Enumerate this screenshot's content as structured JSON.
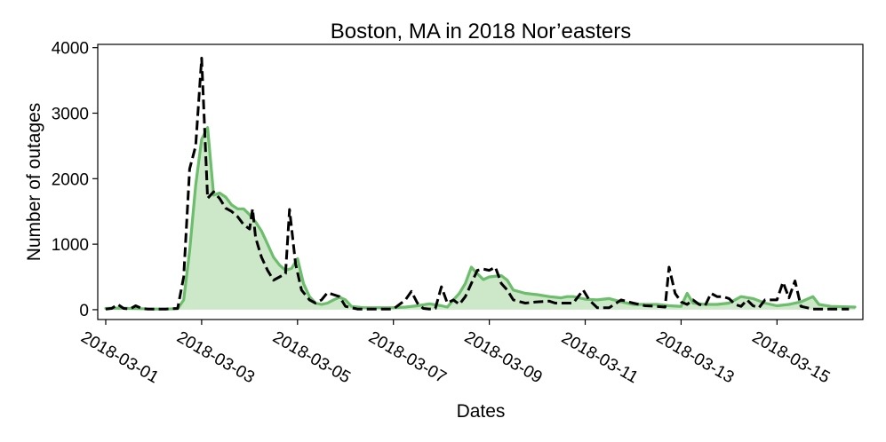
{
  "chart_data": {
    "type": "line",
    "title": "Boston, MA in 2018 Nor’easters",
    "xlabel": "Dates",
    "ylabel": "Number of outages",
    "x_tick_labels": [
      "2018-03-01",
      "2018-03-03",
      "2018-03-05",
      "2018-03-07",
      "2018-03-09",
      "2018-03-11",
      "2018-03-13",
      "2018-03-15"
    ],
    "y_ticks": [
      0,
      1000,
      2000,
      3000,
      4000
    ],
    "ylim": [
      -150,
      4050
    ],
    "xlim": [
      "2018-02-28T20:00",
      "2018-03-16T19:00"
    ],
    "grid": false,
    "series": [
      {
        "style": "filled-area-line",
        "color": "#6cbd6c",
        "fill_color": "#cde8c8",
        "points": [
          [
            "2018-03-01T00:00",
            20
          ],
          [
            "2018-03-01T06:00",
            25
          ],
          [
            "2018-03-01T12:00",
            20
          ],
          [
            "2018-03-01T18:00",
            15
          ],
          [
            "2018-03-02T00:00",
            10
          ],
          [
            "2018-03-02T06:00",
            10
          ],
          [
            "2018-03-02T12:00",
            15
          ],
          [
            "2018-03-02T15:00",
            150
          ],
          [
            "2018-03-02T18:00",
            900
          ],
          [
            "2018-03-02T21:00",
            1900
          ],
          [
            "2018-03-03T00:00",
            2600
          ],
          [
            "2018-03-03T03:00",
            2780
          ],
          [
            "2018-03-03T06:00",
            1750
          ],
          [
            "2018-03-03T09:00",
            1780
          ],
          [
            "2018-03-03T12:00",
            1720
          ],
          [
            "2018-03-03T15:00",
            1600
          ],
          [
            "2018-03-03T18:00",
            1540
          ],
          [
            "2018-03-03T21:00",
            1540
          ],
          [
            "2018-03-04T00:00",
            1450
          ],
          [
            "2018-03-04T03:00",
            1340
          ],
          [
            "2018-03-04T06:00",
            1200
          ],
          [
            "2018-03-04T09:00",
            1000
          ],
          [
            "2018-03-04T12:00",
            800
          ],
          [
            "2018-03-04T15:00",
            680
          ],
          [
            "2018-03-04T18:00",
            600
          ],
          [
            "2018-03-04T21:00",
            630
          ],
          [
            "2018-03-05T00:00",
            780
          ],
          [
            "2018-03-05T03:00",
            400
          ],
          [
            "2018-03-05T06:00",
            200
          ],
          [
            "2018-03-05T09:00",
            100
          ],
          [
            "2018-03-05T12:00",
            80
          ],
          [
            "2018-03-05T15:00",
            100
          ],
          [
            "2018-03-05T18:00",
            150
          ],
          [
            "2018-03-05T21:00",
            190
          ],
          [
            "2018-03-06T00:00",
            150
          ],
          [
            "2018-03-06T03:00",
            50
          ],
          [
            "2018-03-06T09:00",
            30
          ],
          [
            "2018-03-06T18:00",
            30
          ],
          [
            "2018-03-07T00:00",
            30
          ],
          [
            "2018-03-07T06:00",
            40
          ],
          [
            "2018-03-07T12:00",
            60
          ],
          [
            "2018-03-07T18:00",
            90
          ],
          [
            "2018-03-08T00:00",
            60
          ],
          [
            "2018-03-08T03:00",
            40
          ],
          [
            "2018-03-08T06:00",
            150
          ],
          [
            "2018-03-08T09:00",
            250
          ],
          [
            "2018-03-08T12:00",
            400
          ],
          [
            "2018-03-08T15:00",
            650
          ],
          [
            "2018-03-08T18:00",
            550
          ],
          [
            "2018-03-08T21:00",
            460
          ],
          [
            "2018-03-09T00:00",
            500
          ],
          [
            "2018-03-09T06:00",
            520
          ],
          [
            "2018-03-09T09:00",
            450
          ],
          [
            "2018-03-09T12:00",
            300
          ],
          [
            "2018-03-09T18:00",
            250
          ],
          [
            "2018-03-10T00:00",
            230
          ],
          [
            "2018-03-10T06:00",
            200
          ],
          [
            "2018-03-10T12:00",
            180
          ],
          [
            "2018-03-10T15:00",
            200
          ],
          [
            "2018-03-10T18:00",
            200
          ],
          [
            "2018-03-11T00:00",
            160
          ],
          [
            "2018-03-11T06:00",
            150
          ],
          [
            "2018-03-11T12:00",
            170
          ],
          [
            "2018-03-11T18:00",
            120
          ],
          [
            "2018-03-12T00:00",
            80
          ],
          [
            "2018-03-12T06:00",
            80
          ],
          [
            "2018-03-12T12:00",
            80
          ],
          [
            "2018-03-12T18:00",
            60
          ],
          [
            "2018-03-13T00:00",
            50
          ],
          [
            "2018-03-13T03:00",
            250
          ],
          [
            "2018-03-13T06:00",
            100
          ],
          [
            "2018-03-13T12:00",
            80
          ],
          [
            "2018-03-13T18:00",
            80
          ],
          [
            "2018-03-14T00:00",
            100
          ],
          [
            "2018-03-14T06:00",
            200
          ],
          [
            "2018-03-14T12:00",
            170
          ],
          [
            "2018-03-14T18:00",
            100
          ],
          [
            "2018-03-15T00:00",
            60
          ],
          [
            "2018-03-15T06:00",
            80
          ],
          [
            "2018-03-15T12:00",
            120
          ],
          [
            "2018-03-15T18:00",
            200
          ],
          [
            "2018-03-15T21:00",
            80
          ],
          [
            "2018-03-16T03:00",
            50
          ],
          [
            "2018-03-16T15:00",
            40
          ]
        ]
      },
      {
        "style": "dashed-line",
        "color": "#000000",
        "points": [
          [
            "2018-03-01T00:00",
            10
          ],
          [
            "2018-03-01T03:00",
            20
          ],
          [
            "2018-03-01T06:00",
            80
          ],
          [
            "2018-03-01T09:00",
            20
          ],
          [
            "2018-03-01T12:00",
            10
          ],
          [
            "2018-03-01T15:00",
            60
          ],
          [
            "2018-03-01T18:00",
            20
          ],
          [
            "2018-03-01T21:00",
            10
          ],
          [
            "2018-03-02T00:00",
            10
          ],
          [
            "2018-03-02T06:00",
            10
          ],
          [
            "2018-03-02T12:00",
            20
          ],
          [
            "2018-03-02T15:00",
            500
          ],
          [
            "2018-03-02T18:00",
            2150
          ],
          [
            "2018-03-02T21:00",
            2500
          ],
          [
            "2018-03-03T00:00",
            3840
          ],
          [
            "2018-03-03T03:00",
            1700
          ],
          [
            "2018-03-03T06:00",
            1800
          ],
          [
            "2018-03-03T09:00",
            1700
          ],
          [
            "2018-03-03T12:00",
            1550
          ],
          [
            "2018-03-03T15:00",
            1500
          ],
          [
            "2018-03-03T18:00",
            1420
          ],
          [
            "2018-03-03T21:00",
            1300
          ],
          [
            "2018-03-04T00:00",
            1230
          ],
          [
            "2018-03-04T01:30",
            1540
          ],
          [
            "2018-03-04T03:00",
            1100
          ],
          [
            "2018-03-04T06:00",
            800
          ],
          [
            "2018-03-04T09:00",
            600
          ],
          [
            "2018-03-04T12:00",
            450
          ],
          [
            "2018-03-04T15:00",
            500
          ],
          [
            "2018-03-04T18:00",
            550
          ],
          [
            "2018-03-04T20:00",
            1530
          ],
          [
            "2018-03-04T23:00",
            700
          ],
          [
            "2018-03-05T02:00",
            300
          ],
          [
            "2018-03-05T06:00",
            150
          ],
          [
            "2018-03-05T09:00",
            100
          ],
          [
            "2018-03-05T12:00",
            150
          ],
          [
            "2018-03-05T15:00",
            260
          ],
          [
            "2018-03-05T18:00",
            230
          ],
          [
            "2018-03-05T21:00",
            200
          ],
          [
            "2018-03-06T00:00",
            50
          ],
          [
            "2018-03-06T06:00",
            10
          ],
          [
            "2018-03-06T12:00",
            10
          ],
          [
            "2018-03-06T18:00",
            10
          ],
          [
            "2018-03-07T00:00",
            10
          ],
          [
            "2018-03-07T06:00",
            150
          ],
          [
            "2018-03-07T09:00",
            280
          ],
          [
            "2018-03-07T12:00",
            100
          ],
          [
            "2018-03-07T15:00",
            20
          ],
          [
            "2018-03-07T18:00",
            10
          ],
          [
            "2018-03-07T21:00",
            20
          ],
          [
            "2018-03-08T00:00",
            350
          ],
          [
            "2018-03-08T03:00",
            100
          ],
          [
            "2018-03-08T06:00",
            150
          ],
          [
            "2018-03-08T09:00",
            80
          ],
          [
            "2018-03-08T12:00",
            200
          ],
          [
            "2018-03-08T15:00",
            400
          ],
          [
            "2018-03-08T18:00",
            600
          ],
          [
            "2018-03-08T21:00",
            620
          ],
          [
            "2018-03-09T00:00",
            600
          ],
          [
            "2018-03-09T03:00",
            650
          ],
          [
            "2018-03-09T06:00",
            400
          ],
          [
            "2018-03-09T09:00",
            300
          ],
          [
            "2018-03-09T12:00",
            150
          ],
          [
            "2018-03-09T18:00",
            100
          ],
          [
            "2018-03-10T00:00",
            120
          ],
          [
            "2018-03-10T06:00",
            130
          ],
          [
            "2018-03-10T09:00",
            100
          ],
          [
            "2018-03-10T12:00",
            100
          ],
          [
            "2018-03-10T18:00",
            100
          ],
          [
            "2018-03-10T23:00",
            300
          ],
          [
            "2018-03-11T02:00",
            150
          ],
          [
            "2018-03-11T06:00",
            30
          ],
          [
            "2018-03-11T12:00",
            30
          ],
          [
            "2018-03-11T18:00",
            150
          ],
          [
            "2018-03-12T00:00",
            100
          ],
          [
            "2018-03-12T06:00",
            60
          ],
          [
            "2018-03-12T12:00",
            50
          ],
          [
            "2018-03-12T16:00",
            40
          ],
          [
            "2018-03-12T18:00",
            650
          ],
          [
            "2018-03-12T21:00",
            250
          ],
          [
            "2018-03-13T00:00",
            120
          ],
          [
            "2018-03-13T03:00",
            80
          ],
          [
            "2018-03-13T06:00",
            150
          ],
          [
            "2018-03-13T09:00",
            80
          ],
          [
            "2018-03-13T12:00",
            60
          ],
          [
            "2018-03-13T15:00",
            250
          ],
          [
            "2018-03-13T18:00",
            200
          ],
          [
            "2018-03-13T21:00",
            200
          ],
          [
            "2018-03-14T00:00",
            170
          ],
          [
            "2018-03-14T03:00",
            80
          ],
          [
            "2018-03-14T06:00",
            50
          ],
          [
            "2018-03-14T09:00",
            150
          ],
          [
            "2018-03-14T12:00",
            60
          ],
          [
            "2018-03-14T15:00",
            30
          ],
          [
            "2018-03-14T18:00",
            150
          ],
          [
            "2018-03-15T00:00",
            150
          ],
          [
            "2018-03-15T03:00",
            420
          ],
          [
            "2018-03-15T06:00",
            180
          ],
          [
            "2018-03-15T09:00",
            440
          ],
          [
            "2018-03-15T12:00",
            50
          ],
          [
            "2018-03-15T18:00",
            10
          ],
          [
            "2018-03-16T00:00",
            10
          ],
          [
            "2018-03-16T12:00",
            10
          ]
        ]
      }
    ]
  }
}
